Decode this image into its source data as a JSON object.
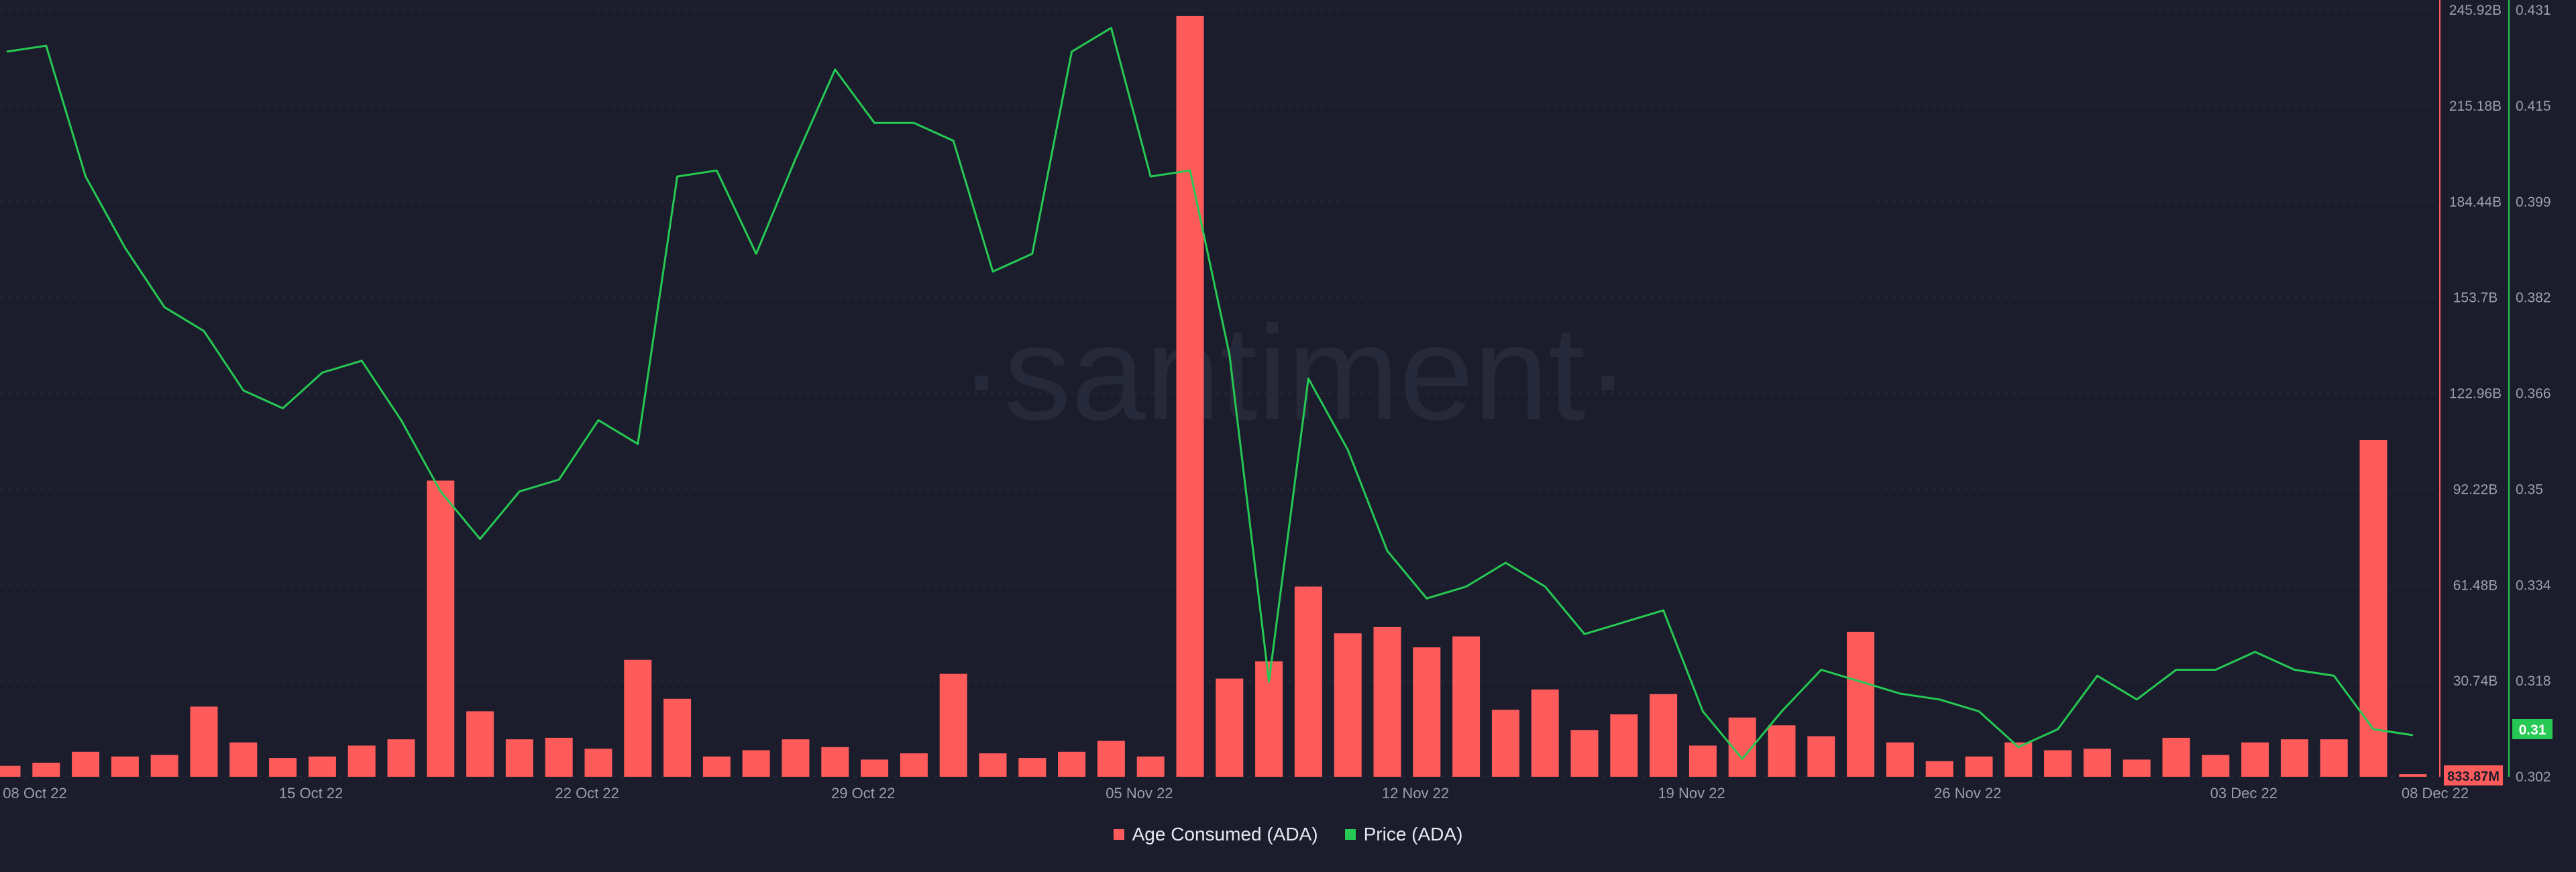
{
  "watermark": "·santiment·",
  "colors": {
    "background": "#1b1d2c",
    "bar": "#ff5b5b",
    "line": "#26c953",
    "grid": "#2a2d3f",
    "axis_text": "#9a9db0",
    "legend_text": "#e6e8f0"
  },
  "legend": {
    "age_consumed": "Age Consumed (ADA)",
    "price": "Price (ADA)"
  },
  "chart_data": {
    "type": "bar",
    "x_tick_labels": [
      "08 Oct 22",
      "15 Oct 22",
      "22 Oct 22",
      "29 Oct 22",
      "05 Nov 22",
      "12 Nov 22",
      "19 Nov 22",
      "26 Nov 22",
      "03 Dec 22",
      "08 Dec 22"
    ],
    "x_tick_indices": [
      0,
      7,
      14,
      21,
      28,
      35,
      42,
      49,
      56,
      61
    ],
    "left_axis": {
      "tick_labels": [
        "245.92B",
        "215.18B",
        "184.44B",
        "153.7B",
        "122.96B",
        "92.22B",
        "61.48B",
        "30.74B"
      ],
      "ylim": [
        0,
        245.92
      ],
      "unit": "B"
    },
    "right_axis": {
      "tick_labels": [
        "0.431",
        "0.415",
        "0.399",
        "0.382",
        "0.366",
        "0.35",
        "0.334",
        "0.318",
        "0.302"
      ],
      "ylim": [
        0.302,
        0.431
      ]
    },
    "current_values": {
      "age_consumed": "833.87M",
      "price": "0.31"
    },
    "series": [
      {
        "name": "Age Consumed (ADA)",
        "type": "bar",
        "axis": "left",
        "values": [
          3.5,
          4.5,
          8,
          6.5,
          7,
          22.5,
          11,
          6,
          6.5,
          10,
          12,
          95,
          21,
          12,
          12.5,
          9,
          37.5,
          25,
          6.5,
          8.5,
          12,
          9.5,
          5.5,
          7.5,
          33,
          7.5,
          6,
          8,
          11.5,
          6.5,
          244,
          31.5,
          37,
          61,
          46,
          48,
          41.5,
          45,
          21.5,
          28,
          15,
          20,
          26.5,
          10,
          19,
          16.5,
          13,
          46.5,
          11,
          5,
          6.5,
          11,
          8.5,
          9,
          5.5,
          12.5,
          7,
          11,
          12,
          12,
          108,
          0.834
        ]
      },
      {
        "name": "Price (ADA)",
        "type": "line",
        "axis": "right",
        "values": [
          0.424,
          0.425,
          0.403,
          0.391,
          0.381,
          0.377,
          0.367,
          0.364,
          0.37,
          0.372,
          0.362,
          0.35,
          0.342,
          0.35,
          0.352,
          0.362,
          0.358,
          0.403,
          0.404,
          0.39,
          0.406,
          0.421,
          0.412,
          0.412,
          0.409,
          0.387,
          0.39,
          0.424,
          0.428,
          0.403,
          0.404,
          0.373,
          0.318,
          0.369,
          0.357,
          0.34,
          0.332,
          0.334,
          0.338,
          0.334,
          0.326,
          0.328,
          0.33,
          0.313,
          0.305,
          0.313,
          0.32,
          0.318,
          0.316,
          0.315,
          0.313,
          0.307,
          0.31,
          0.319,
          0.315,
          0.32,
          0.32,
          0.323,
          0.32,
          0.319,
          0.31,
          0.309
        ]
      }
    ]
  }
}
